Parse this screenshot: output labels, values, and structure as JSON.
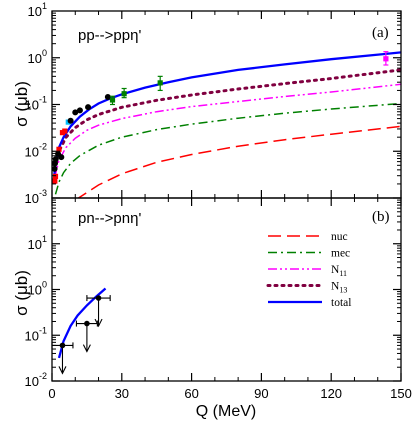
{
  "chart_data": [
    {
      "type": "line",
      "panel_label": "(a)",
      "reaction": "pp-->ppη'",
      "ylabel": "σ (μb)",
      "xlabel": "",
      "xlim": [
        0,
        150
      ],
      "ylim": [
        0.001,
        10
      ],
      "yscale": "log",
      "y_tick_labels": [
        {
          "v": 0.001,
          "b": "10",
          "e": "-3"
        },
        {
          "v": 0.01,
          "b": "10",
          "e": "-2"
        },
        {
          "v": 0.1,
          "b": "10",
          "e": "-1"
        },
        {
          "v": 1,
          "b": "10",
          "e": "0"
        },
        {
          "v": 10,
          "b": "10",
          "e": "1"
        }
      ],
      "colors": {
        "nuc": "#ff0000",
        "mec": "#008000",
        "N11": "#ff00ff",
        "N13": "#800040",
        "total": "#0000ff"
      },
      "series": [
        {
          "key": "nuc",
          "x": [
            10,
            20,
            30,
            45,
            60,
            80,
            100,
            120,
            150
          ],
          "values": [
            0.0009,
            0.0019,
            0.0033,
            0.0058,
            0.0085,
            0.0128,
            0.0177,
            0.0232,
            0.034
          ]
        },
        {
          "key": "mec",
          "x": [
            1.5,
            3,
            5,
            8,
            12,
            20,
            30,
            45,
            60,
            80,
            100,
            120,
            150
          ],
          "values": [
            0.0012,
            0.0022,
            0.0035,
            0.0055,
            0.0081,
            0.0135,
            0.02,
            0.029,
            0.038,
            0.051,
            0.065,
            0.08,
            0.105
          ]
        },
        {
          "key": "N11",
          "x": [
            1,
            3,
            6,
            10,
            15,
            20,
            30,
            45,
            60,
            80,
            100,
            120,
            150
          ],
          "values": [
            0.0025,
            0.0065,
            0.012,
            0.019,
            0.028,
            0.036,
            0.05,
            0.07,
            0.09,
            0.116,
            0.148,
            0.185,
            0.27
          ]
        },
        {
          "key": "N13",
          "x": [
            1,
            3,
            6,
            10,
            15,
            20,
            30,
            45,
            60,
            80,
            100,
            120,
            150
          ],
          "values": [
            0.004,
            0.01,
            0.02,
            0.032,
            0.047,
            0.061,
            0.087,
            0.123,
            0.16,
            0.215,
            0.28,
            0.36,
            0.55
          ]
        },
        {
          "key": "total",
          "x": [
            0.8,
            1.5,
            3,
            5,
            8,
            12,
            16,
            20,
            25,
            30,
            40,
            50,
            60,
            80,
            100,
            120,
            150
          ],
          "values": [
            0.0025,
            0.0055,
            0.012,
            0.02,
            0.034,
            0.055,
            0.079,
            0.105,
            0.135,
            0.165,
            0.23,
            0.3,
            0.38,
            0.55,
            0.72,
            0.93,
            1.3
          ]
        }
      ],
      "data_points": [
        {
          "x": 1.1,
          "y": 0.0042,
          "color": "#000000",
          "shape": "circle"
        },
        {
          "x": 1.3,
          "y": 0.0055,
          "color": "#000000",
          "shape": "circle"
        },
        {
          "x": 1.6,
          "y": 0.0068,
          "color": "#000000",
          "shape": "circle"
        },
        {
          "x": 2.6,
          "y": 0.0088,
          "color": "#000000",
          "shape": "circle"
        },
        {
          "x": 4.0,
          "y": 0.0075,
          "color": "#000000",
          "shape": "circle"
        },
        {
          "x": 1.2,
          "y": 0.0023,
          "color": "#ff0000",
          "shape": "square"
        },
        {
          "x": 1.5,
          "y": 0.0029,
          "color": "#ff0000",
          "shape": "square"
        },
        {
          "x": 3.0,
          "y": 0.011,
          "color": "#ff0000",
          "shape": "square"
        },
        {
          "x": 4.5,
          "y": 0.025,
          "color": "#ff0000",
          "shape": "square"
        },
        {
          "x": 5.5,
          "y": 0.027,
          "color": "#ff0000",
          "shape": "square"
        },
        {
          "x": 7.0,
          "y": 0.042,
          "color": "#00bfff",
          "shape": "square"
        },
        {
          "x": 8.0,
          "y": 0.045,
          "color": "#000000",
          "shape": "circle"
        },
        {
          "x": 10.0,
          "y": 0.068,
          "color": "#000000",
          "shape": "circle"
        },
        {
          "x": 12.0,
          "y": 0.075,
          "color": "#000000",
          "shape": "circle"
        },
        {
          "x": 15.5,
          "y": 0.088,
          "color": "#000000",
          "shape": "circle"
        },
        {
          "x": 24.0,
          "y": 0.145,
          "color": "#000000",
          "shape": "circle"
        },
        {
          "x": 26.0,
          "y": 0.125,
          "color": "#008000",
          "shape": "square",
          "err": [
            0.1,
            0.15
          ]
        },
        {
          "x": 31.0,
          "y": 0.17,
          "color": "#008000",
          "shape": "square",
          "err": [
            0.14,
            0.22
          ]
        },
        {
          "x": 46.5,
          "y": 0.29,
          "color": "#008000",
          "shape": "square",
          "err": [
            0.2,
            0.4
          ]
        },
        {
          "x": 143.5,
          "y": 0.95,
          "color": "#ff00ff",
          "shape": "square",
          "err": [
            0.7,
            1.35
          ]
        }
      ]
    },
    {
      "type": "line",
      "panel_label": "(b)",
      "reaction": "pn-->pnη'",
      "ylabel": "σ (μb)",
      "xlabel": "Q (MeV)",
      "xlim": [
        0,
        150
      ],
      "ylim": [
        0.01,
        100
      ],
      "yscale": "log",
      "x_tick_labels": [
        "0",
        "30",
        "60",
        "90",
        "120",
        "150"
      ],
      "x_tick_values": [
        0,
        30,
        60,
        90,
        120,
        150
      ],
      "y_tick_labels": [
        {
          "v": 0.01,
          "b": "10",
          "e": "-2"
        },
        {
          "v": 0.1,
          "b": "10",
          "e": "-1"
        },
        {
          "v": 1,
          "b": "10",
          "e": "0"
        },
        {
          "v": 10,
          "b": "10",
          "e": "1"
        }
      ],
      "legend": [
        {
          "key": "nuc",
          "label": "nuc"
        },
        {
          "key": "mec",
          "label": "mec"
        },
        {
          "key": "N11",
          "label": "N",
          "sub": "11"
        },
        {
          "key": "N13",
          "label": "N",
          "sub": "13"
        },
        {
          "key": "total",
          "label": "total"
        }
      ],
      "series": [
        {
          "key": "total",
          "x": [
            3,
            5,
            8,
            11,
            15,
            19,
            23
          ],
          "values": [
            0.032,
            0.075,
            0.16,
            0.27,
            0.45,
            0.7,
            1.05
          ]
        }
      ],
      "upper_limits": [
        {
          "x": 4.5,
          "y": 0.06,
          "xerr": 4.5
        },
        {
          "x": 15,
          "y": 0.18,
          "xerr": 4.5
        },
        {
          "x": 20,
          "y": 0.65,
          "xerr": 5
        }
      ]
    }
  ]
}
